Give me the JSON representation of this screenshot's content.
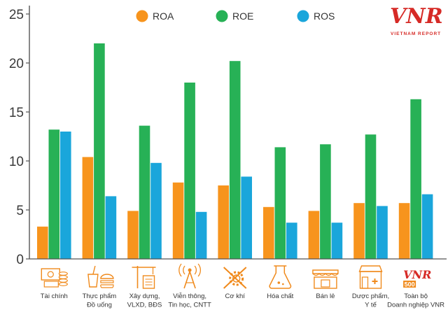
{
  "chart_data": {
    "type": "bar",
    "title": "",
    "xlabel": "",
    "ylabel": "",
    "ylim": [
      0,
      25
    ],
    "yticks": [
      0,
      5,
      10,
      15,
      20,
      25
    ],
    "grid": false,
    "legend_position": "top",
    "categories": [
      [
        "Tài chính"
      ],
      [
        "Thực phẩm",
        "Đồ uống"
      ],
      [
        "Xây dựng,",
        "VLXD, BĐS"
      ],
      [
        "Viễn thông,",
        "Tin học, CNTT"
      ],
      [
        "Cơ khí"
      ],
      [
        "Hóa chất"
      ],
      [
        "Bán lẻ"
      ],
      [
        "Dược phẩm,",
        "Y tế"
      ],
      [
        "Toàn bộ",
        "Doanh nghiệp VNR"
      ]
    ],
    "category_icons": [
      "money-icon",
      "food-drink-icon",
      "construction-icon",
      "telecom-tower-icon",
      "gear-tools-icon",
      "chemistry-flask-icon",
      "retail-store-icon",
      "pharmacy-icon",
      "vnr500-logo-icon"
    ],
    "series": [
      {
        "name": "ROA",
        "color": "#f7941d",
        "values": [
          3.3,
          10.4,
          4.9,
          7.8,
          7.5,
          5.3,
          4.9,
          5.7,
          5.7
        ]
      },
      {
        "name": "ROE",
        "color": "#27b156",
        "values": [
          13.2,
          22.0,
          13.6,
          18.0,
          20.2,
          11.4,
          11.7,
          12.7,
          16.3
        ]
      },
      {
        "name": "ROS",
        "color": "#1aa6db",
        "values": [
          13.0,
          6.4,
          9.8,
          4.8,
          8.4,
          3.7,
          3.7,
          5.4,
          6.6
        ]
      }
    ]
  },
  "logo": {
    "text": "VNR",
    "subtitle": "VIETNAM REPORT",
    "badge": "500"
  },
  "colors": {
    "axis": "#555555",
    "icon": "#f08a1c",
    "logo_red": "#d62a26"
  }
}
